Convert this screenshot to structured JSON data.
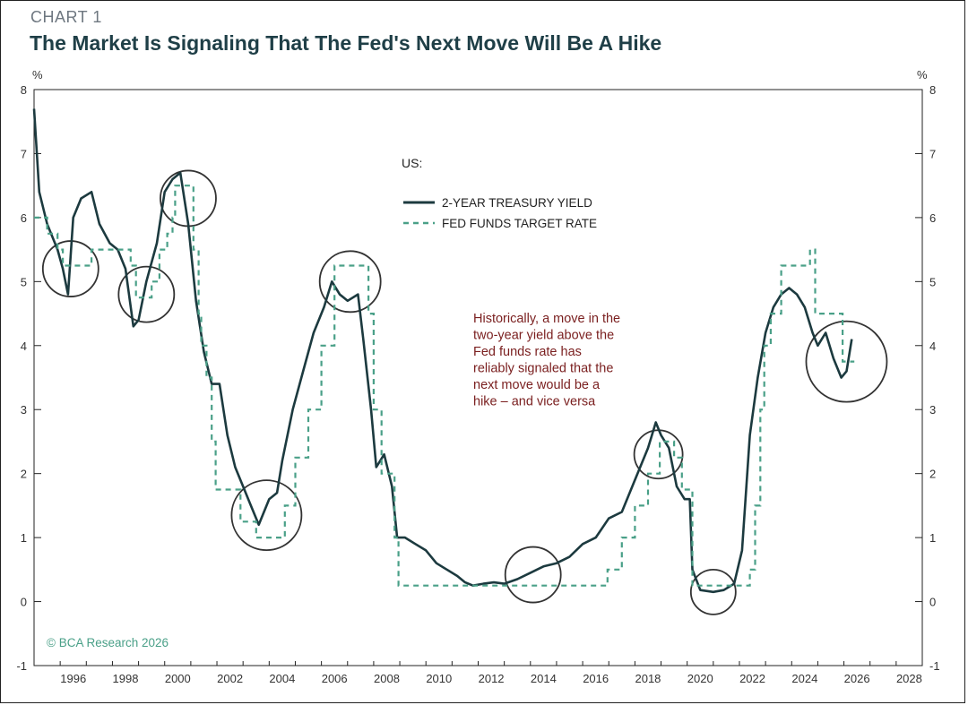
{
  "chart_label": "CHART 1",
  "chart_title": "The Market Is Signaling That The Fed's Next Move Will Be A Hike",
  "credit": "© BCA Research 2026",
  "colors": {
    "yield": "#1c3a3f",
    "fed": "#4aa088",
    "annotation": "#7a1f1f",
    "circle": "#333333"
  },
  "chart_data": {
    "type": "line",
    "title": "The Market Is Signaling That The Fed's Next Move Will Be A Hike",
    "xlabel": "",
    "ylabel_left": "%",
    "ylabel_right": "%",
    "xlim": [
      1995,
      2029
    ],
    "ylim": [
      -1,
      8
    ],
    "x_ticks": [
      "1996",
      "1998",
      "2000",
      "2002",
      "2004",
      "2006",
      "2008",
      "2010",
      "2012",
      "2014",
      "2016",
      "2018",
      "2020",
      "2022",
      "2024",
      "2026",
      "2028"
    ],
    "y_ticks": [
      "-1",
      "0",
      "1",
      "2",
      "3",
      "4",
      "5",
      "6",
      "7",
      "8"
    ],
    "legend_title": "US:",
    "legend_position": "top-center",
    "series": [
      {
        "name": "2-YEAR TREASURY YIELD",
        "style": "solid",
        "x": [
          1995.0,
          1995.2,
          1995.5,
          1995.9,
          1996.1,
          1996.3,
          1996.5,
          1996.8,
          1997.2,
          1997.5,
          1997.9,
          1998.2,
          1998.5,
          1998.8,
          1999.0,
          1999.3,
          1999.7,
          2000.0,
          2000.3,
          2000.6,
          2000.9,
          2001.2,
          2001.5,
          2001.8,
          2002.1,
          2002.4,
          2002.7,
          2003.0,
          2003.3,
          2003.6,
          2004.0,
          2004.3,
          2004.5,
          2004.9,
          2005.3,
          2005.7,
          2006.1,
          2006.4,
          2006.7,
          2007.0,
          2007.4,
          2007.6,
          2007.9,
          2008.1,
          2008.4,
          2008.7,
          2008.9,
          2009.2,
          2009.6,
          2010.0,
          2010.4,
          2010.8,
          2011.2,
          2011.5,
          2011.8,
          2012.2,
          2012.6,
          2013.0,
          2013.5,
          2014.0,
          2014.5,
          2015.0,
          2015.5,
          2016.0,
          2016.5,
          2017.0,
          2017.5,
          2018.0,
          2018.5,
          2018.8,
          2019.0,
          2019.3,
          2019.6,
          2019.9,
          2020.1,
          2020.2,
          2020.5,
          2021.0,
          2021.4,
          2021.8,
          2022.1,
          2022.4,
          2022.7,
          2023.0,
          2023.3,
          2023.6,
          2023.9,
          2024.2,
          2024.5,
          2024.8,
          2025.0,
          2025.3,
          2025.6,
          2025.9,
          2026.1,
          2026.3
        ],
        "y": [
          7.7,
          6.4,
          5.9,
          5.5,
          5.2,
          4.8,
          6.0,
          6.3,
          6.4,
          5.9,
          5.6,
          5.5,
          5.2,
          4.3,
          4.4,
          5.0,
          5.6,
          6.4,
          6.6,
          6.7,
          5.9,
          4.7,
          3.9,
          3.4,
          3.4,
          2.6,
          2.1,
          1.8,
          1.5,
          1.2,
          1.6,
          1.7,
          2.2,
          3.0,
          3.6,
          4.2,
          4.6,
          5.0,
          4.8,
          4.7,
          4.8,
          4.1,
          3.0,
          2.1,
          2.3,
          1.8,
          1.0,
          1.0,
          0.9,
          0.8,
          0.6,
          0.5,
          0.4,
          0.3,
          0.25,
          0.28,
          0.3,
          0.28,
          0.35,
          0.45,
          0.55,
          0.6,
          0.7,
          0.9,
          1.0,
          1.3,
          1.4,
          1.9,
          2.4,
          2.8,
          2.6,
          2.4,
          1.8,
          1.6,
          1.6,
          0.5,
          0.18,
          0.15,
          0.18,
          0.28,
          0.8,
          2.6,
          3.5,
          4.2,
          4.6,
          4.8,
          4.9,
          4.8,
          4.6,
          4.2,
          4.0,
          4.2,
          3.8,
          3.5,
          3.6,
          4.1
        ]
      },
      {
        "name": "FED FUNDS TARGET RATE",
        "style": "dashed",
        "x": [
          1995.0,
          1995.5,
          1995.9,
          1996.1,
          1997.2,
          1998.7,
          1998.9,
          1999.5,
          1999.8,
          2000.1,
          2000.3,
          2000.4,
          2001.0,
          2001.1,
          2001.3,
          2001.4,
          2001.6,
          2001.8,
          2001.95,
          2002.9,
          2003.5,
          2004.4,
          2004.6,
          2005.0,
          2005.5,
          2006.0,
          2006.5,
          2007.6,
          2007.8,
          2008.0,
          2008.3,
          2008.8,
          2008.95,
          2015.95,
          2016.95,
          2017.5,
          2018.0,
          2018.5,
          2018.95,
          2019.5,
          2019.8,
          2020.2,
          2022.2,
          2022.4,
          2022.6,
          2022.8,
          2022.95,
          2023.2,
          2023.6,
          2024.7,
          2024.9,
          2025.7,
          2025.95,
          2026.3
        ],
        "y": [
          6.0,
          5.75,
          5.5,
          5.25,
          5.5,
          5.25,
          4.75,
          5.0,
          5.5,
          5.75,
          6.0,
          6.5,
          6.5,
          5.5,
          4.5,
          4.0,
          3.5,
          2.5,
          1.75,
          1.25,
          1.0,
          1.0,
          1.5,
          2.25,
          3.0,
          4.0,
          5.25,
          5.25,
          4.5,
          3.0,
          2.0,
          1.0,
          0.25,
          0.25,
          0.5,
          1.0,
          1.5,
          2.0,
          2.5,
          2.25,
          1.75,
          0.25,
          0.25,
          0.5,
          1.5,
          3.0,
          4.0,
          4.5,
          5.25,
          5.5,
          4.5,
          4.5,
          3.75,
          3.75
        ]
      }
    ],
    "annotation_lines": [
      "Historically, a move in the",
      "two-year yield above the",
      "Fed funds rate has",
      "reliably signaled that the",
      "next move would be a",
      "hike – and vice versa"
    ]
  }
}
